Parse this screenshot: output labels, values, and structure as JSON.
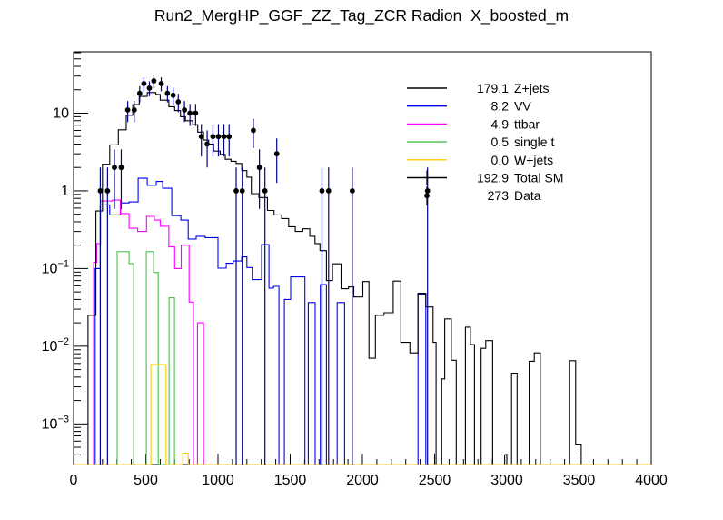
{
  "title": "Run2_MergHP_GGF_ZZ_Tag_ZCR Radion  X_boosted_m",
  "chart_data": {
    "type": "histogram",
    "y_scale": "log",
    "title": "Run2_MergHP_GGF_ZZ_Tag_ZCR Radion  X_boosted_m",
    "xlabel": "",
    "ylabel": "",
    "x_range": [
      0,
      4000
    ],
    "y_range": [
      0.0003,
      61.6
    ],
    "grid": false,
    "x_major_ticks": [
      0,
      500,
      1000,
      1500,
      2000,
      2500,
      3000,
      3500,
      4000
    ],
    "x_tick_labels": [
      "0",
      "500",
      "1000",
      "1500",
      "2000",
      "2500",
      "3000",
      "3500",
      "4000"
    ],
    "x_minor_step": 100,
    "y_major_ticks": [
      {
        "v": 10,
        "base": "10",
        "sup": ""
      },
      {
        "v": 1,
        "base": "1",
        "sup": ""
      },
      {
        "v": 0.1,
        "base": "10",
        "sup": "−1"
      },
      {
        "v": 0.01,
        "base": "10",
        "sup": "−2"
      },
      {
        "v": 0.001,
        "base": "10",
        "sup": "−3"
      }
    ],
    "series": [
      {
        "name": "VV",
        "color": "#0000ee",
        "end": 2450,
        "points": [
          [
            150,
            0.1
          ],
          [
            185,
            0.66
          ],
          [
            250,
            0.49
          ],
          [
            326,
            0.7
          ],
          [
            384,
            0.72
          ],
          [
            447,
            1.45
          ],
          [
            510,
            1.18
          ],
          [
            573,
            1.32
          ],
          [
            617,
            1.08
          ],
          [
            680,
            0.48
          ],
          [
            743,
            0.42
          ],
          [
            794,
            0.24
          ],
          [
            849,
            0.26
          ],
          [
            911,
            0.25
          ],
          [
            1000,
            0.101
          ],
          [
            1057,
            0.117
          ],
          [
            1105,
            0.125
          ],
          [
            1164,
            0.141
          ],
          [
            1200,
            0.103
          ],
          [
            1237,
            0.072
          ],
          [
            1302,
            0.203
          ],
          [
            1353,
            0.056
          ],
          [
            1384,
            0.059
          ],
          [
            1422,
            0
          ],
          [
            1460,
            0.04
          ],
          [
            1503,
            0.078
          ],
          [
            1602,
            0
          ],
          [
            1625,
            0.0365
          ],
          [
            1673,
            0
          ],
          [
            1709,
            0.062
          ],
          [
            1751,
            0
          ],
          [
            1825,
            0.0365
          ],
          [
            1877,
            0
          ],
          [
            2385,
            0.047
          ],
          [
            2439,
            0
          ]
        ]
      },
      {
        "name": "ttbar",
        "color": "#ff00ff",
        "end": 900,
        "points": [
          [
            139,
            0.12
          ],
          [
            160,
            0.21
          ],
          [
            187,
            0.74
          ],
          [
            270,
            0.76
          ],
          [
            324,
            0.51
          ],
          [
            384,
            0.33
          ],
          [
            444,
            0.3
          ],
          [
            505,
            0.47
          ],
          [
            560,
            0.42
          ],
          [
            600,
            0.35
          ],
          [
            660,
            0.19
          ],
          [
            700,
            0.1
          ],
          [
            745,
            0.2
          ],
          [
            800,
            0.037
          ],
          [
            830,
            0
          ],
          [
            858,
            0.02
          ]
        ]
      },
      {
        "name": "single t",
        "color": "#4dbd4d",
        "end": 720,
        "points": [
          [
            302,
            0.165
          ],
          [
            384,
            0.116
          ],
          [
            416,
            0
          ],
          [
            504,
            0.165
          ],
          [
            554,
            0.089
          ],
          [
            586,
            0
          ],
          [
            661,
            0.042
          ],
          [
            699,
            0
          ]
        ]
      },
      {
        "name": "Total SM",
        "color": "#000000",
        "end": 4000,
        "points": [
          [
            100,
            0.025
          ],
          [
            155,
            0.55
          ],
          [
            200,
            2.2
          ],
          [
            250,
            3.9
          ],
          [
            310,
            6.1
          ],
          [
            365,
            9.4
          ],
          [
            410,
            12.9
          ],
          [
            455,
            16.4
          ],
          [
            510,
            18.4
          ],
          [
            570,
            17.4
          ],
          [
            600,
            14.7
          ],
          [
            660,
            12.1
          ],
          [
            700,
            10.8
          ],
          [
            740,
            9.0
          ],
          [
            775,
            8.0
          ],
          [
            825,
            7.1
          ],
          [
            860,
            5.7
          ],
          [
            900,
            4.5
          ],
          [
            935,
            4.0
          ],
          [
            970,
            3.25
          ],
          [
            1015,
            2.95
          ],
          [
            1050,
            2.55
          ],
          [
            1090,
            2.4
          ],
          [
            1125,
            2.25
          ],
          [
            1165,
            1.82
          ],
          [
            1200,
            1.5
          ],
          [
            1231,
            0.92
          ],
          [
            1283,
            0.82
          ],
          [
            1342,
            0.56
          ],
          [
            1388,
            0.49
          ],
          [
            1441,
            0.44
          ],
          [
            1489,
            0.345
          ],
          [
            1535,
            0.3
          ],
          [
            1587,
            0.325
          ],
          [
            1636,
            0.26
          ],
          [
            1672,
            0.21
          ],
          [
            1706,
            0.17
          ],
          [
            1751,
            0.07
          ],
          [
            1793,
            0.115
          ],
          [
            1852,
            0.055
          ],
          [
            1904,
            0.058
          ],
          [
            1940,
            0.043
          ],
          [
            2003,
            0.068
          ],
          [
            2045,
            0.007
          ],
          [
            2090,
            0.025
          ],
          [
            2150,
            0.027
          ],
          [
            2213,
            0.069
          ],
          [
            2266,
            0.0112
          ],
          [
            2329,
            0.0082
          ],
          [
            2385,
            0.048
          ],
          [
            2439,
            0.032
          ],
          [
            2489,
            0.0112
          ],
          [
            2510,
            0
          ],
          [
            2549,
            0.0038
          ],
          [
            2570,
            0.0225
          ],
          [
            2616,
            0.0066
          ],
          [
            2650,
            0
          ],
          [
            2713,
            0.0176
          ],
          [
            2748,
            0.0105
          ],
          [
            2776,
            0
          ],
          [
            2822,
            0.0094
          ],
          [
            2854,
            0.0118
          ],
          [
            2902,
            0
          ],
          [
            2985,
            0.0004
          ],
          [
            3000,
            0
          ],
          [
            3033,
            0.0045
          ],
          [
            3071,
            0
          ],
          [
            3155,
            0.0064
          ],
          [
            3190,
            0.0082
          ],
          [
            3232,
            0
          ],
          [
            3435,
            0.0065
          ],
          [
            3477,
            0.00055
          ],
          [
            3515,
            0
          ]
        ]
      },
      {
        "name": "W+jets",
        "color": "#ffcc00",
        "end": 4000,
        "points": [
          [
            0,
            0
          ],
          [
            535,
            0.0058
          ],
          [
            640,
            0
          ],
          [
            756,
            0.00042
          ],
          [
            794,
            0
          ]
        ]
      }
    ],
    "data_points": {
      "name": "Data",
      "marker_color": "#000000",
      "error_bar_color": "#00008b",
      "points": [
        [
          185,
          1
        ],
        [
          235,
          1
        ],
        [
          283,
          2
        ],
        [
          330,
          2
        ],
        [
          375,
          11
        ],
        [
          420,
          11
        ],
        [
          458,
          18
        ],
        [
          487,
          24
        ],
        [
          525,
          21
        ],
        [
          556,
          26
        ],
        [
          607,
          24
        ],
        [
          650,
          18
        ],
        [
          690,
          17
        ],
        [
          725,
          14
        ],
        [
          768,
          11
        ],
        [
          806,
          10
        ],
        [
          845,
          10
        ],
        [
          885,
          5
        ],
        [
          925,
          4
        ],
        [
          965,
          5
        ],
        [
          1003,
          5
        ],
        [
          1041,
          5
        ],
        [
          1077,
          5
        ],
        [
          1126,
          1
        ],
        [
          1168,
          1
        ],
        [
          1245,
          6
        ],
        [
          1287,
          2
        ],
        [
          1325,
          1
        ],
        [
          1407,
          3
        ],
        [
          1720,
          1
        ],
        [
          1766,
          1
        ],
        [
          1930,
          1
        ],
        [
          2451,
          1
        ]
      ]
    },
    "legend": {
      "position": "top-right",
      "entries": [
        {
          "value": "179.1",
          "label": "Z+jets",
          "color": "#000000",
          "style": "line"
        },
        {
          "value": "8.2",
          "label": "VV",
          "color": "#0000ee",
          "style": "line"
        },
        {
          "value": "4.9",
          "label": "ttbar",
          "color": "#ff00ff",
          "style": "line"
        },
        {
          "value": "0.5",
          "label": "single t",
          "color": "#4dbd4d",
          "style": "line"
        },
        {
          "value": "0.0",
          "label": "W+jets",
          "color": "#ffcc00",
          "style": "line"
        },
        {
          "value": "192.9",
          "label": "Total SM",
          "color": "#000000",
          "style": "errline"
        },
        {
          "value": "273",
          "label": "Data",
          "color": "#000000",
          "style": "point"
        }
      ]
    }
  }
}
